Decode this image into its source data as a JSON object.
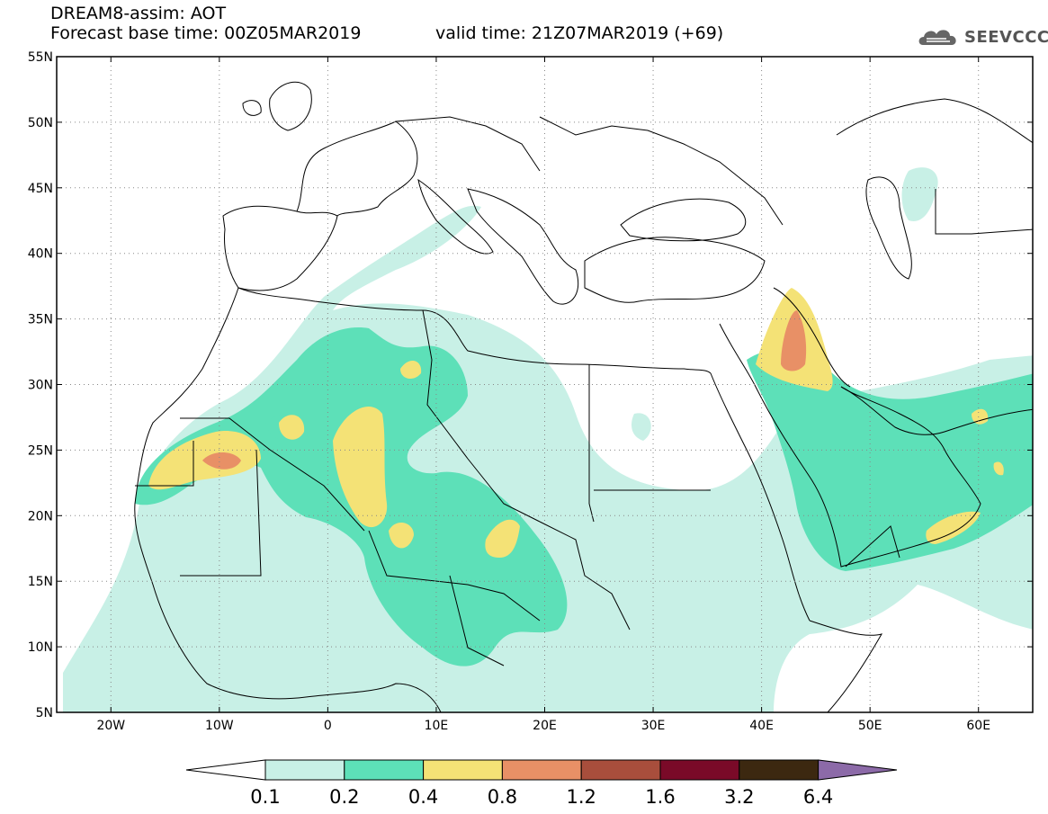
{
  "header": {
    "title": "DREAM8-assim: AOT",
    "base_time_label": "Forecast base time: 00Z05MAR2019",
    "valid_time_label": "valid time: 21Z07MAR2019 (+69)"
  },
  "logo": {
    "text": "SEEVCCC",
    "icon": "cloud-logo-icon"
  },
  "map": {
    "lat_labels": [
      "55N",
      "50N",
      "45N",
      "40N",
      "35N",
      "30N",
      "25N",
      "20N",
      "15N",
      "10N",
      "5N"
    ],
    "lon_labels": [
      "20W",
      "10W",
      "0",
      "10E",
      "20E",
      "30E",
      "40E",
      "50E",
      "60E"
    ],
    "colors": {
      "band_0_1_0_2": "#c8f0e6",
      "band_0_2_0_4": "#5de0b8",
      "band_0_4_0_8": "#f4e276",
      "band_0_8_1_2": "#e89066",
      "coast": "#000000"
    }
  },
  "colorbar": {
    "labels": [
      "0.1",
      "0.2",
      "0.4",
      "0.8",
      "1.2",
      "1.6",
      "3.2",
      "6.4"
    ],
    "colors": [
      "#c8f0e6",
      "#5de0b8",
      "#f4e276",
      "#e89066",
      "#a84e3c",
      "#7a0a28",
      "#3c2810",
      "#8c6aa8"
    ]
  }
}
